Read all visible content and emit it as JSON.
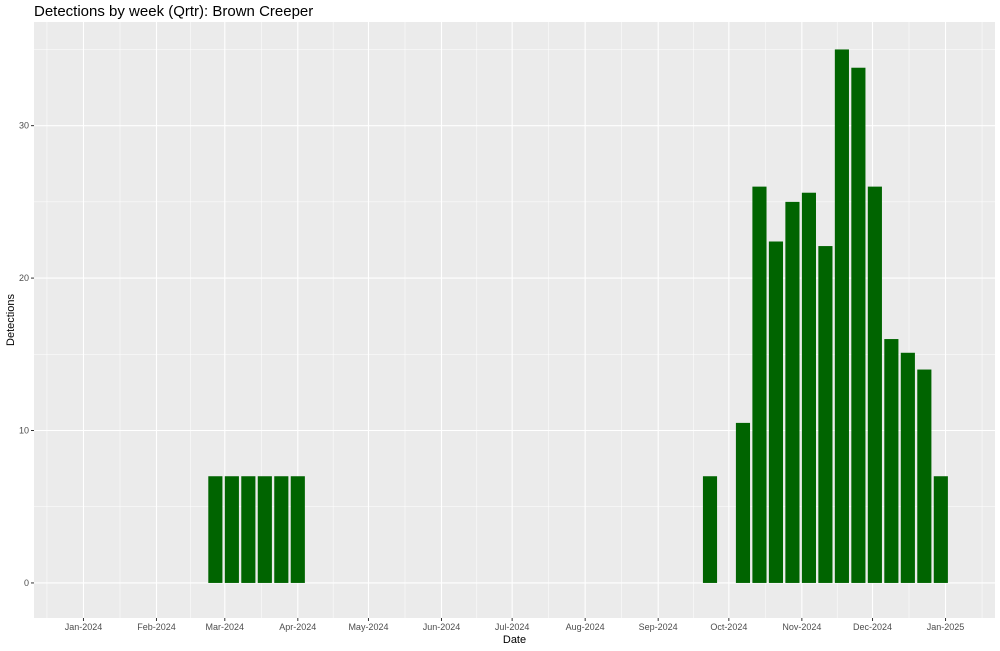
{
  "chart_data": {
    "type": "bar",
    "title": "Detections by week (Qrtr): Brown Creeper",
    "xlabel": "Date",
    "ylabel": "Detections",
    "ylim": [
      -2.3,
      36.8
    ],
    "y_ticks": [
      0,
      10,
      20,
      30
    ],
    "x_ticks": [
      "Jan-2024",
      "Feb-2024",
      "Mar-2024",
      "Apr-2024",
      "May-2024",
      "Jun-2024",
      "Jul-2024",
      "Aug-2024",
      "Sep-2024",
      "Oct-2024",
      "Nov-2024",
      "Dec-2024",
      "Jan-2025"
    ],
    "x_tick_dates": [
      "2024-01-01",
      "2024-02-01",
      "2024-03-01",
      "2024-04-01",
      "2024-05-01",
      "2024-06-01",
      "2024-07-01",
      "2024-08-01",
      "2024-09-01",
      "2024-10-01",
      "2024-11-01",
      "2024-12-01",
      "2025-01-01"
    ],
    "xlim": [
      "2023-12-11",
      "2025-01-22"
    ],
    "bar_color": "#006400",
    "panel_color": "#EBEBEB",
    "grid": true,
    "legend": "none",
    "x": [
      "2024-02-26",
      "2024-03-04",
      "2024-03-11",
      "2024-03-18",
      "2024-03-25",
      "2024-04-01",
      "2024-09-23",
      "2024-10-07",
      "2024-10-14",
      "2024-10-21",
      "2024-10-28",
      "2024-11-04",
      "2024-11-11",
      "2024-11-18",
      "2024-11-25",
      "2024-12-02",
      "2024-12-09",
      "2024-12-16",
      "2024-12-23",
      "2024-12-30"
    ],
    "values": [
      7,
      7,
      7,
      7,
      7,
      7,
      7,
      10.5,
      26,
      22.4,
      25,
      25.6,
      22.1,
      35,
      33.8,
      26,
      16,
      15.1,
      14,
      7
    ]
  }
}
